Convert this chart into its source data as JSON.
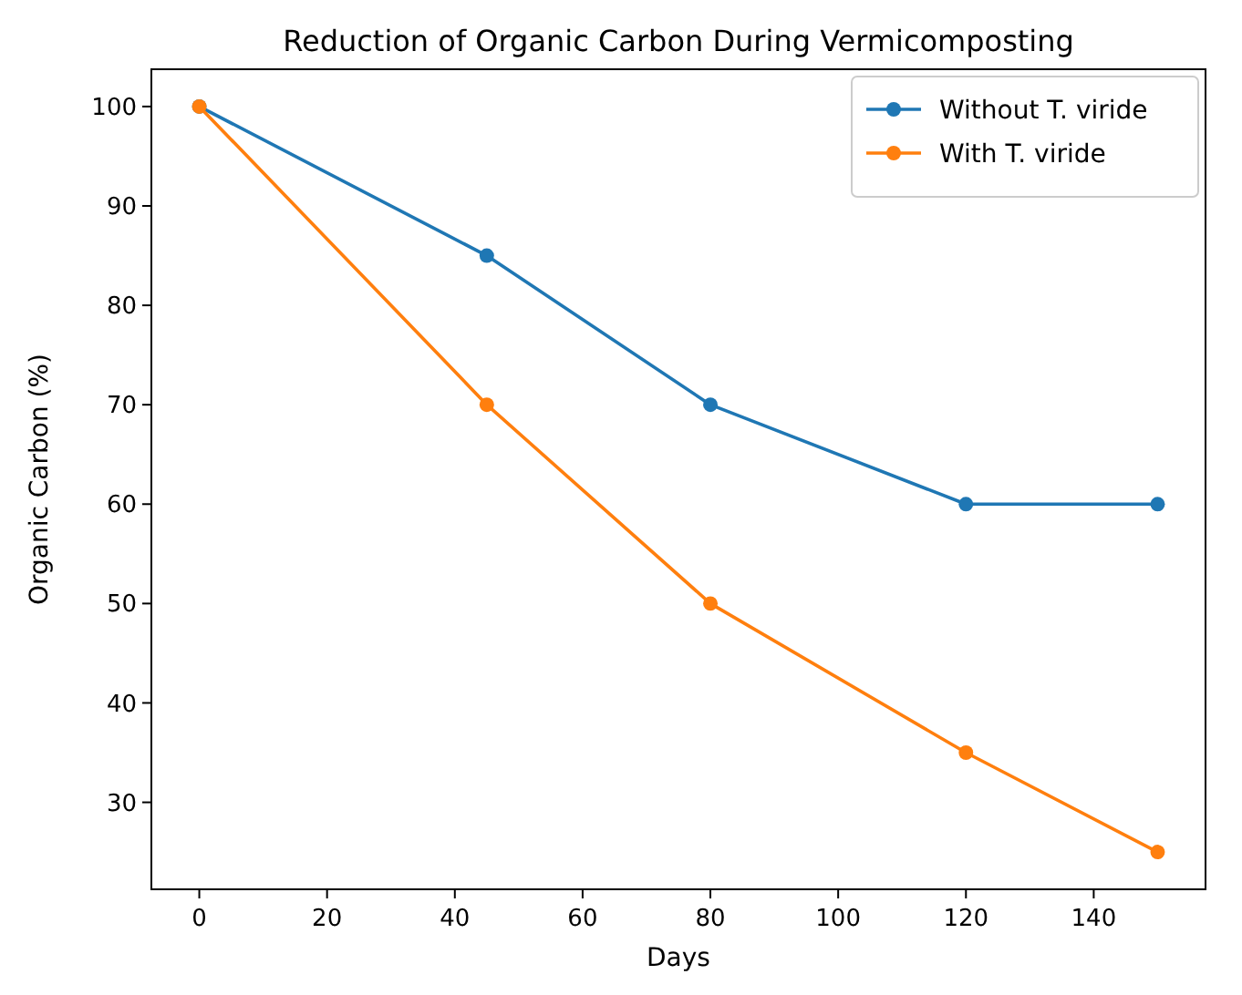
{
  "chart_data": {
    "type": "line",
    "title": "Reduction of Organic Carbon During Vermicomposting",
    "xlabel": "Days",
    "ylabel": "Organic Carbon (%)",
    "x": [
      0,
      45,
      80,
      120,
      150
    ],
    "series": [
      {
        "name": "Without T. viride",
        "color": "#1f77b4",
        "values": [
          100,
          85,
          70,
          60,
          60
        ]
      },
      {
        "name": "With T. viride",
        "color": "#ff7f0e",
        "values": [
          100,
          70,
          50,
          35,
          25
        ]
      }
    ],
    "xlim": [
      -7.5,
      157.5
    ],
    "xticks": [
      0,
      20,
      40,
      60,
      80,
      100,
      120,
      140
    ],
    "ylim": [
      21.25,
      103.75
    ],
    "yticks": [
      30,
      40,
      50,
      60,
      70,
      80,
      90,
      100
    ],
    "marker": "circle",
    "legend": "top right",
    "grid": false
  }
}
